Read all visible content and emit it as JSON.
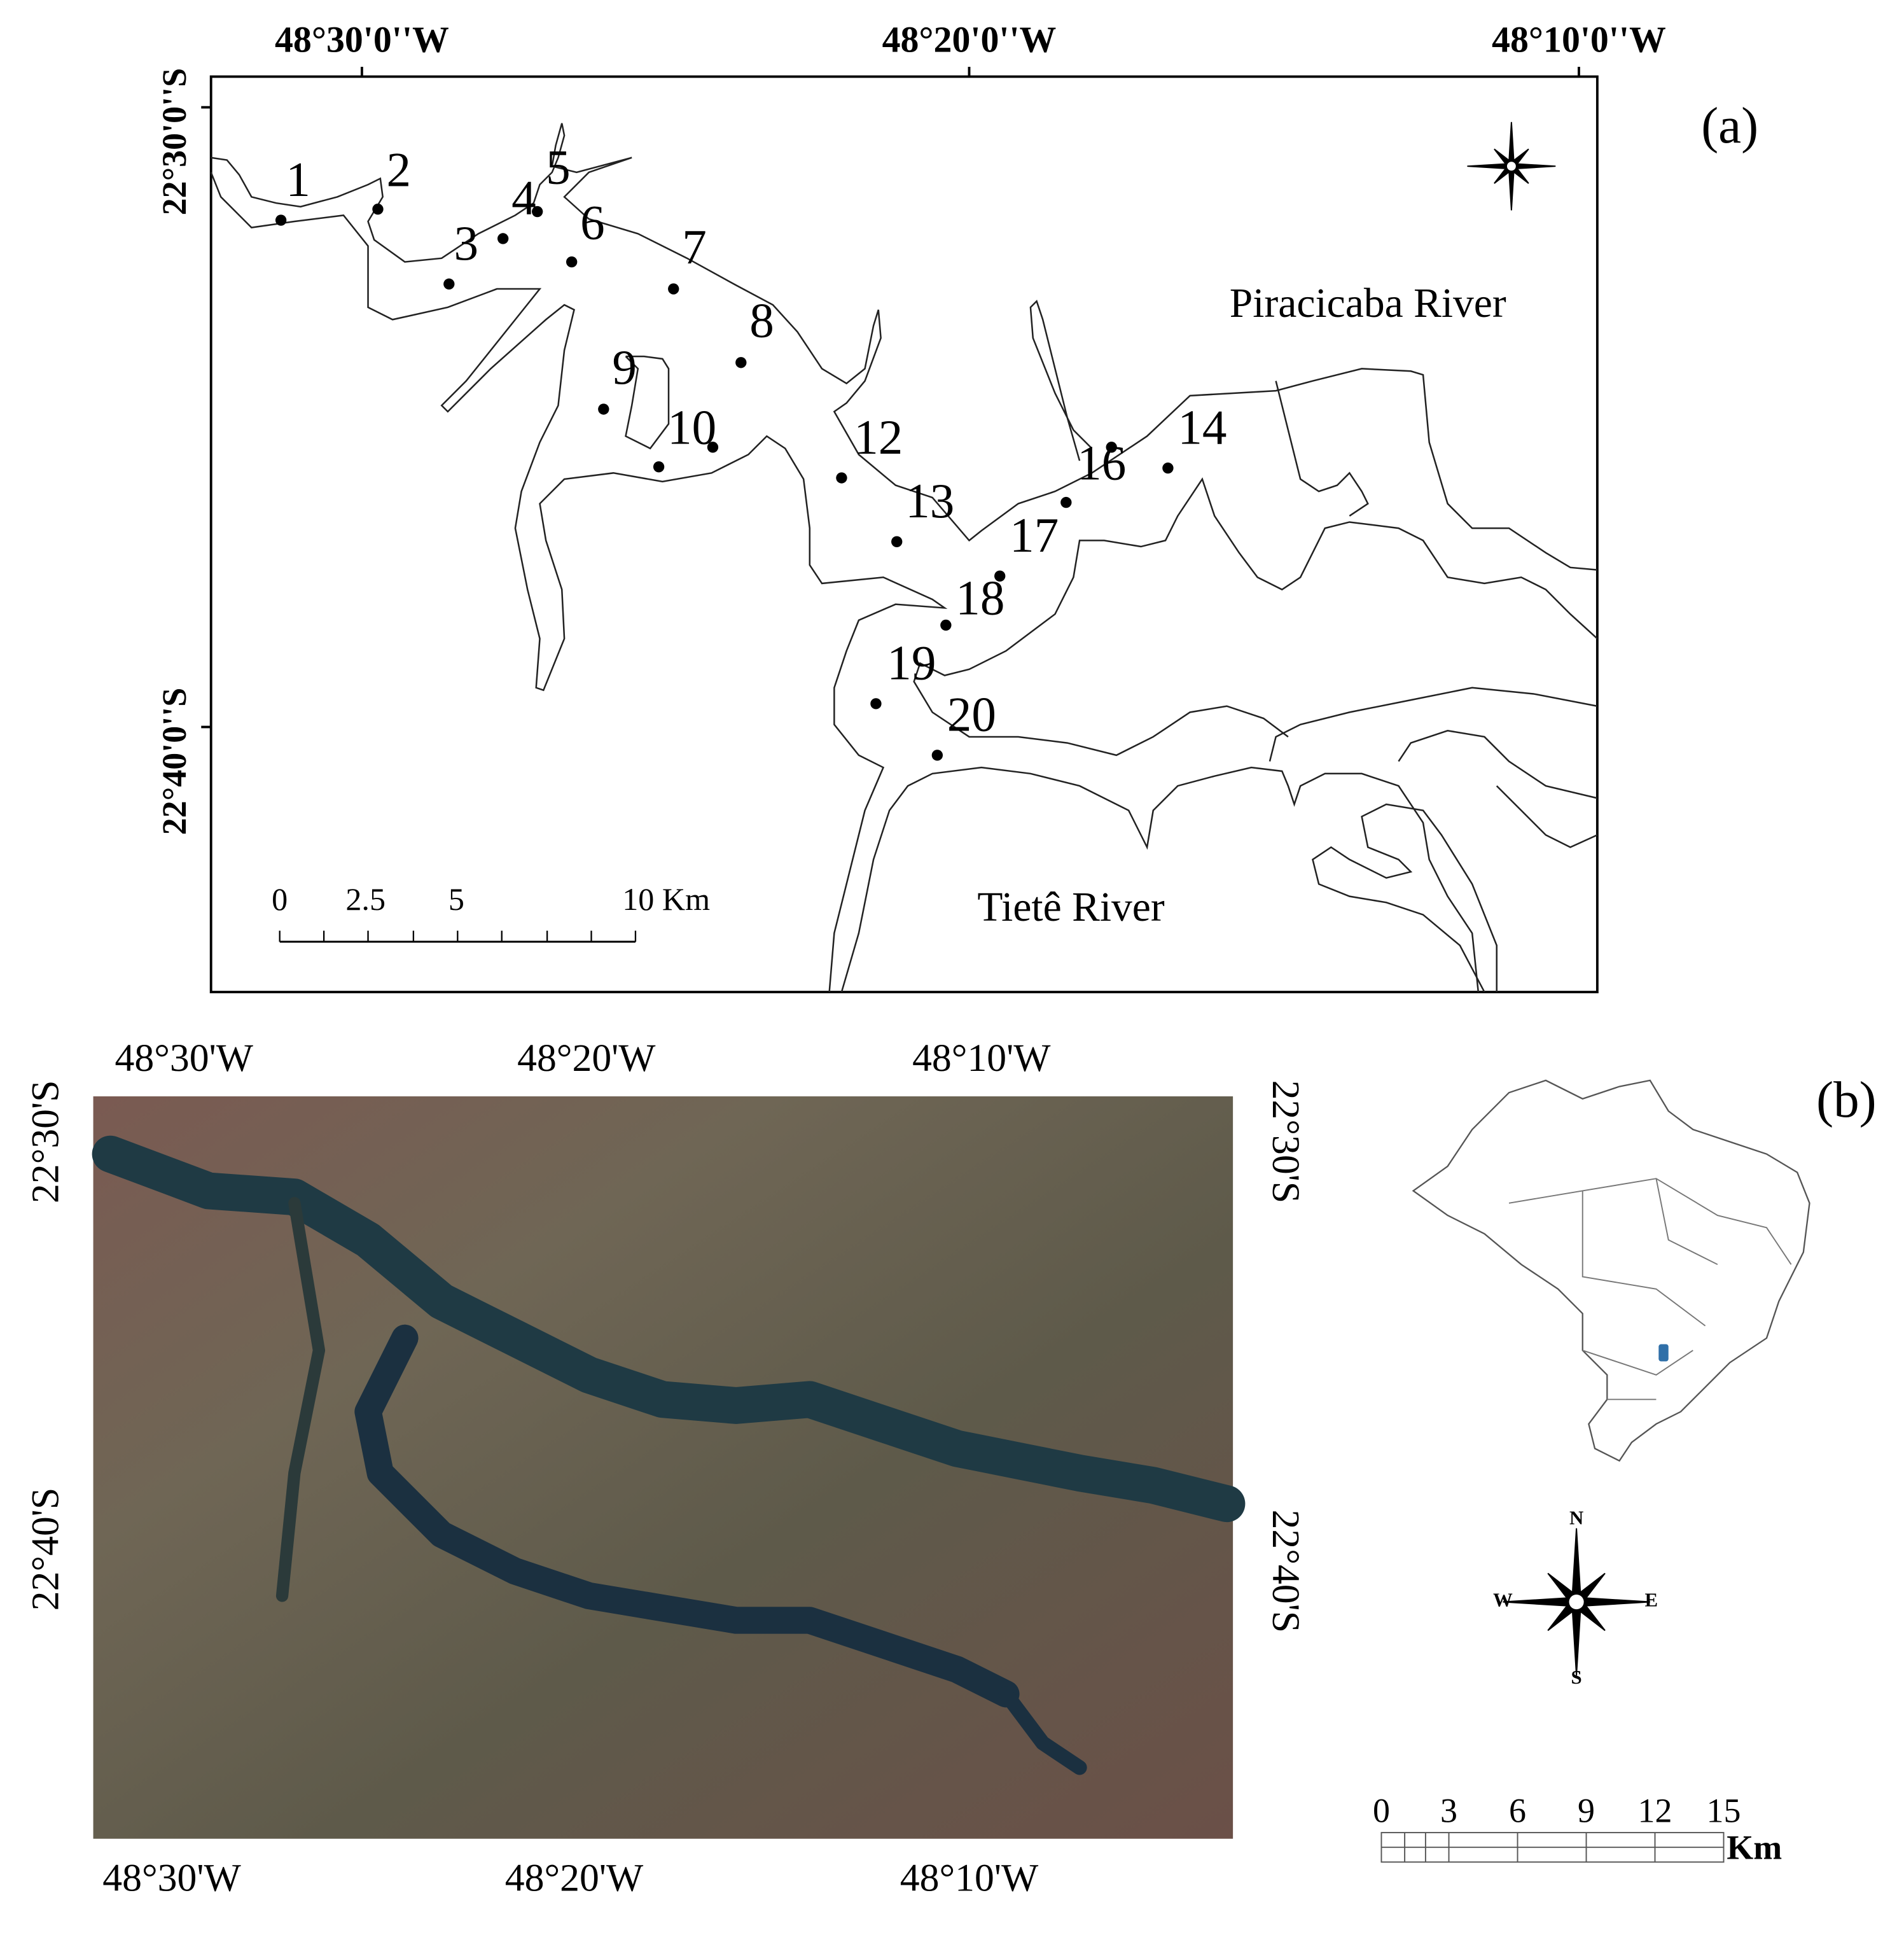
{
  "panel_a": {
    "label": "(a)",
    "longitude_labels": [
      "48°30'0''W",
      "48°20'0''W",
      "48°10'0''W"
    ],
    "latitude_labels": [
      "22°30'0''S",
      "22°40'0''S"
    ],
    "sites": [
      "1",
      "2",
      "3",
      "4",
      "5",
      "6",
      "7",
      "8",
      "9",
      "10",
      "12",
      "13",
      "14",
      "16",
      "17",
      "18",
      "19",
      "20"
    ],
    "rivers": [
      "Piracicaba River",
      "Tietê River"
    ],
    "scale": [
      "0",
      "2.5",
      "5",
      "10 Km"
    ]
  },
  "panel_b": {
    "label": "(b)",
    "top_longitude": [
      "48°30'W",
      "48°20'W",
      "48°10'W"
    ],
    "bottom_longitude": [
      "48°30'W",
      "48°20'W",
      "48°10'W"
    ],
    "left_latitude": [
      "22°30'S",
      "22°40'S"
    ],
    "right_latitude": [
      "22°30'S",
      "22°40'S"
    ],
    "compass": [
      "N",
      "W",
      "E",
      "S"
    ],
    "scale": [
      "0",
      "3",
      "6",
      "9",
      "12",
      "15"
    ],
    "scale_unit": "Km"
  }
}
